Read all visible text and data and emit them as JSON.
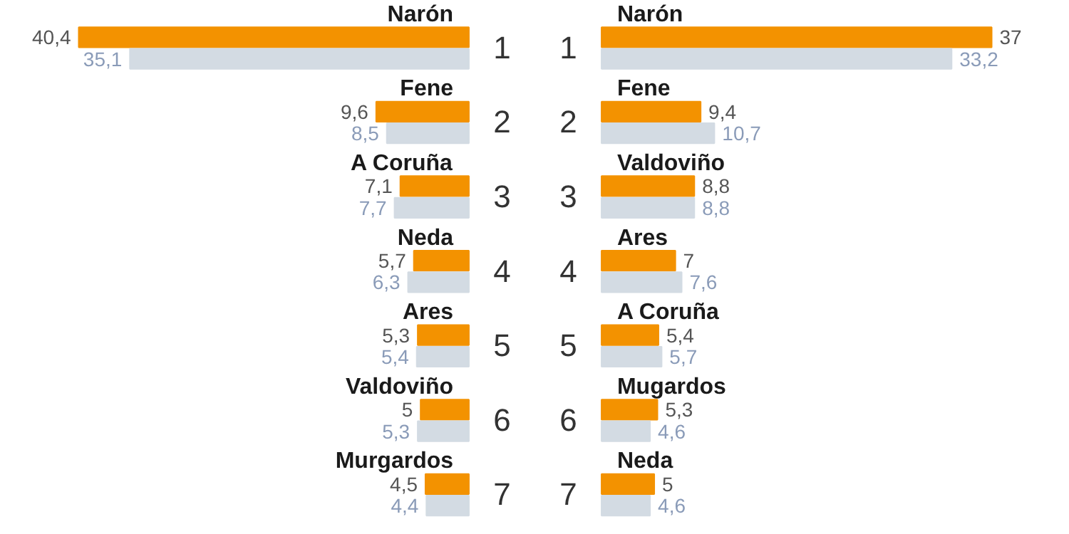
{
  "chart_data": [
    {
      "type": "bar",
      "orientation": "horizontal",
      "categories": [
        "Narón",
        "Fene",
        "A Coruña",
        "Neda",
        "Ares",
        "Valdoviño",
        "Murgardos"
      ],
      "series": [
        {
          "color": "#f39200",
          "values": [
            40.4,
            9.6,
            7.1,
            5.7,
            5.3,
            5,
            4.5
          ],
          "value_labels": [
            "40,4",
            "9,6",
            "7,1",
            "5,7",
            "5,3",
            "5",
            "4,5"
          ]
        },
        {
          "color": "#d3dbe3",
          "values": [
            35.1,
            8.5,
            7.7,
            6.3,
            5.4,
            5.3,
            4.4
          ],
          "value_labels": [
            "35,1",
            "8,5",
            "7,7",
            "6,3",
            "5,4",
            "5,3",
            "4,4"
          ]
        }
      ],
      "annotations": [
        "1",
        "2",
        "3",
        "4",
        "5",
        "6",
        "7"
      ]
    },
    {
      "type": "bar",
      "orientation": "horizontal",
      "categories": [
        "Narón",
        "Fene",
        "Valdoviño",
        "Ares",
        "A Coruña",
        "Mugardos",
        "Neda"
      ],
      "series": [
        {
          "color": "#f39200",
          "values": [
            37,
            9.4,
            8.8,
            7,
            5.4,
            5.3,
            5
          ],
          "value_labels": [
            "37",
            "9,4",
            "8,8",
            "7",
            "5,4",
            "5,3",
            "5"
          ]
        },
        {
          "color": "#d3dbe3",
          "values": [
            33.2,
            10.7,
            8.8,
            7.6,
            5.7,
            4.6,
            4.6
          ],
          "value_labels": [
            "33,2",
            "10,7",
            "8,8",
            "7,6",
            "5,7",
            "4,6",
            "4,6"
          ]
        }
      ],
      "annotations": [
        "1",
        "2",
        "3",
        "4",
        "5",
        "6",
        "7"
      ]
    }
  ]
}
